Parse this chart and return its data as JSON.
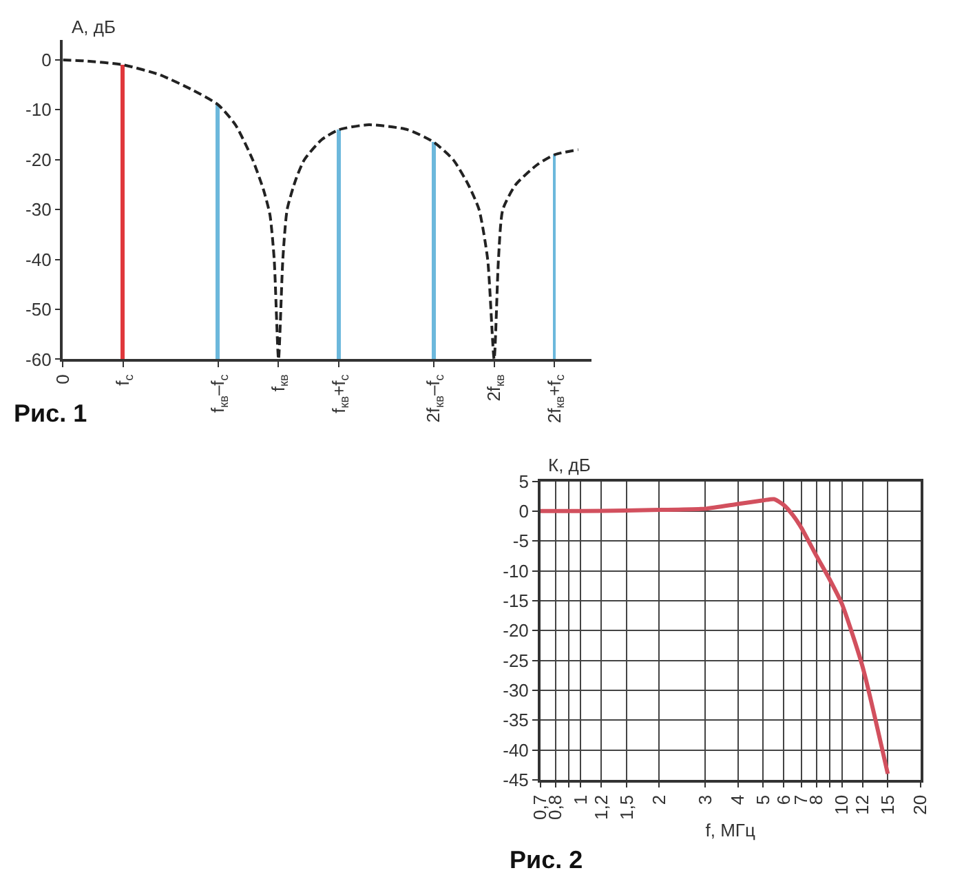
{
  "chart_data": [
    {
      "type": "bar",
      "ylabel": "А, дБ",
      "annotations": [
        "Рис. 1"
      ],
      "grid": false,
      "xlim": [
        0,
        2.45
      ],
      "xticks": [
        0,
        {
          "value": 0.28,
          "label": "f$_{с}$"
        },
        {
          "value": 0.72,
          "label": "f$_{кв}$–f$_{с}$"
        },
        {
          "value": 1.0,
          "label": "f$_{кв}$"
        },
        {
          "value": 1.28,
          "label": "f$_{кв}$+f$_{с}$"
        },
        {
          "value": 1.72,
          "label": "2f$_{кв}$–f$_{с}$"
        },
        {
          "value": 2.0,
          "label": "2f$_{кв}$"
        },
        {
          "value": 2.28,
          "label": "2f$_{кв}$+f$_{с}$"
        }
      ],
      "ylim": [
        -60,
        4
      ],
      "yticks": [
        -60,
        -50,
        -40,
        -30,
        -20,
        -10,
        0
      ],
      "series": [
        {
          "type": "bar",
          "x": [
            0.28,
            0.72,
            1.28,
            1.72,
            2.28
          ],
          "base": [
            -60,
            -60,
            -60,
            -60,
            -60
          ],
          "values": [
            59,
            51,
            46,
            43.5,
            41
          ],
          "colors": [
            "#e0383c",
            "#6cb8dc",
            "#6cb8dc",
            "#6cb8dc",
            "#6cb8dc"
          ]
        },
        {
          "type": "line",
          "line_style": "dashed",
          "color": "#222222",
          "x": [
            0,
            0.1,
            0.28,
            0.45,
            0.6,
            0.72,
            0.8,
            0.88,
            0.93,
            0.96,
            0.98,
            1.0,
            1.02,
            1.04,
            1.08,
            1.12,
            1.2,
            1.28,
            1.42,
            1.6,
            1.72,
            1.81,
            1.88,
            1.93,
            1.97,
            2.0,
            2.02,
            2.04,
            2.1,
            2.2,
            2.28,
            2.39
          ],
          "values": [
            0,
            -0.2,
            -1,
            -3,
            -6,
            -9,
            -13,
            -20,
            -26,
            -31,
            -40,
            -60,
            -40,
            -30,
            -24,
            -20,
            -16,
            -14,
            -13,
            -14,
            -16.5,
            -20,
            -25,
            -30,
            -40,
            -60,
            -40,
            -30,
            -25,
            -21,
            -19,
            -18
          ]
        }
      ]
    },
    {
      "type": "line",
      "xlabel": "f, МГц",
      "ylabel": "К, дБ",
      "annotations": [
        "Рис. 2"
      ],
      "grid": true,
      "log": "x",
      "color": "#d2505e",
      "xlim": [
        0.7,
        20
      ],
      "xticks": [
        {
          "value": 0.7,
          "label": "0,7"
        },
        {
          "value": 0.8,
          "label": "0,8"
        },
        {
          "value": 0.9,
          "label": null
        },
        1,
        {
          "value": 1.2,
          "label": "1,2"
        },
        {
          "value": 1.5,
          "label": "1,5"
        },
        2,
        3,
        4,
        5,
        6,
        7,
        8,
        {
          "value": 9,
          "label": null
        },
        10,
        12,
        15,
        20
      ],
      "ylim": [
        -45,
        5
      ],
      "yticks": [
        -45,
        -40,
        -35,
        -30,
        -25,
        -20,
        -15,
        -10,
        -5,
        0,
        5
      ],
      "x": [
        0.7,
        1,
        1.5,
        2,
        3,
        4,
        5,
        5.5,
        6,
        6.5,
        7,
        8,
        9,
        10,
        12,
        15
      ],
      "values": [
        0,
        0,
        0.1,
        0.2,
        0.4,
        1.2,
        1.8,
        2,
        1,
        -0.7,
        -2.8,
        -7.5,
        -11.5,
        -15.5,
        -26,
        -44
      ]
    }
  ]
}
